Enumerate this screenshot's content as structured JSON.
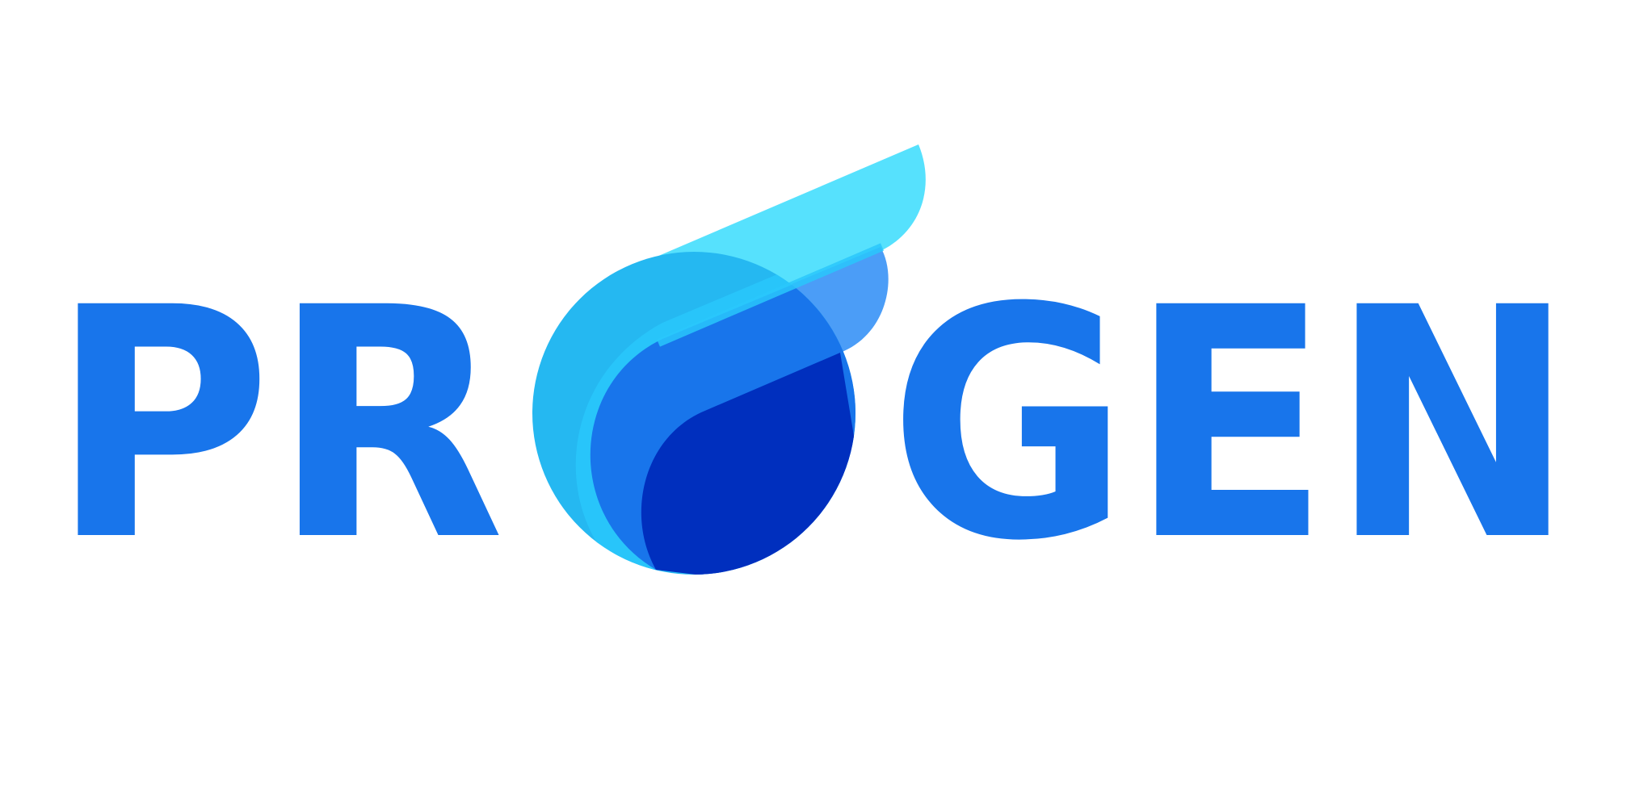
{
  "logo": {
    "text_left": "PR",
    "text_right": "GEN",
    "full_name": "PROGEN",
    "colors": {
      "primary_blue": "#1875EB",
      "navy": "#002FBE",
      "sky": "#25B8F1",
      "cyan_light": "#56E1FD",
      "cyan_mid": "#29C7FB",
      "soft_blue": "#4B9DF7",
      "background": "#FFFFFF"
    }
  }
}
